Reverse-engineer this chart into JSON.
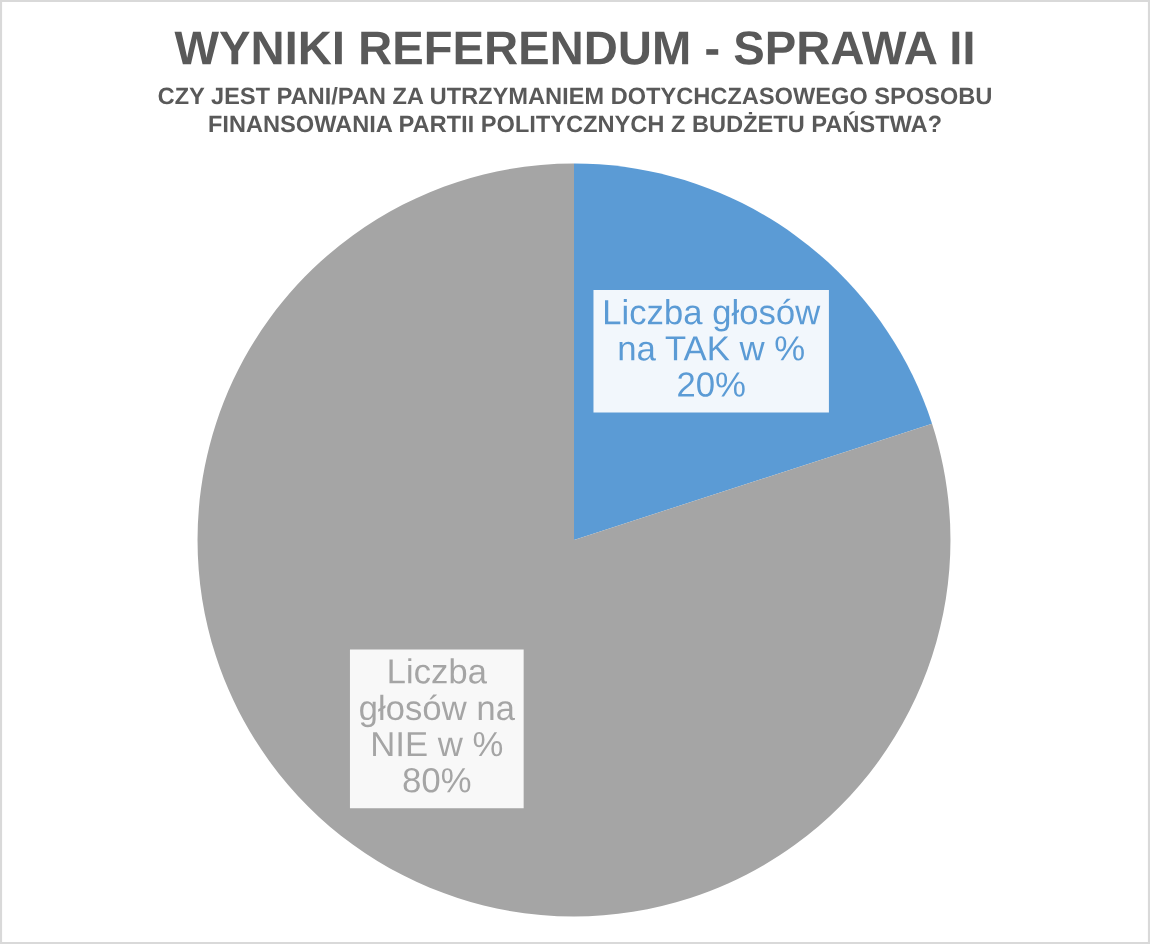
{
  "chart_data": {
    "type": "pie",
    "title": "WYNIKI REFERENDUM - SPRAWA II",
    "subtitle": "CZY JEST PANI/PAN ZA UTRZYMANIEM DOTYCHCZASOWEGO SPOSOBU\nFINANSOWANIA PARTII POLITYCZNYCH Z BUDŻETU PAŃSTWA?",
    "categories": [
      "Liczba głosów\nna TAK w %",
      "Liczba\ngłosów na\nNIE w %"
    ],
    "values": [
      20,
      80
    ],
    "colors": [
      "#5b9bd5",
      "#a5a5a5"
    ],
    "value_labels": [
      "20%",
      "80%"
    ]
  }
}
